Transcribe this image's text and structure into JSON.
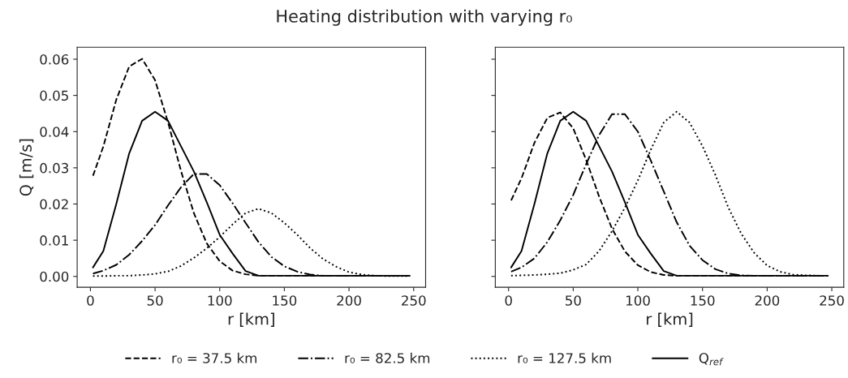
{
  "chart_data": [
    {
      "type": "line",
      "title": "Heating distribution with varying r₀",
      "xlabel": "r [km]",
      "ylabel": "Q [m/s]",
      "x": [
        2,
        10,
        20,
        30,
        40,
        50,
        60,
        70,
        80,
        90,
        100,
        110,
        120,
        130,
        140,
        150,
        160,
        170,
        180,
        190,
        200,
        210,
        220,
        230,
        240,
        247
      ],
      "xlim": [
        -10.25,
        259.25
      ],
      "xticks": [
        0,
        50,
        100,
        150,
        200,
        250
      ],
      "ylim": [
        -0.003,
        0.0633
      ],
      "yticks": [
        {
          "value": 0,
          "label": "0.00"
        },
        {
          "value": 0.01,
          "label": "0.01"
        },
        {
          "value": 0.02,
          "label": "0.02"
        },
        {
          "value": 0.03,
          "label": "0.03"
        },
        {
          "value": 0.04,
          "label": "0.04"
        },
        {
          "value": 0.05,
          "label": "0.05"
        },
        {
          "value": 0.06,
          "label": "0.06"
        }
      ],
      "legend": "bottom",
      "grid": false,
      "series": [
        {
          "name": "r₀ = 37.5 km",
          "color": "#000000",
          "line_style": "dashed",
          "values": [
            0.0278,
            0.0359,
            0.0488,
            0.058,
            0.0601,
            0.0542,
            0.0426,
            0.0292,
            0.0175,
            0.0091,
            0.0042,
            0.0016,
            0.0006,
            0.0002,
            0.0002,
            0.0002,
            0.0002,
            0.0002,
            0.0002,
            0.0002,
            0.0002,
            0.0002,
            0.0002,
            0.0002,
            0.0002,
            0.0002
          ]
        },
        {
          "name": "r₀ = 82.5 km",
          "color": "#000000",
          "line_style": "dashdot",
          "values": [
            0.0008,
            0.0016,
            0.0032,
            0.006,
            0.0098,
            0.0142,
            0.0196,
            0.0246,
            0.0283,
            0.0283,
            0.0252,
            0.0202,
            0.0148,
            0.0095,
            0.0054,
            0.0028,
            0.0013,
            0.0005,
            0.0002,
            0.0002,
            0.0002,
            0.0002,
            0.0002,
            0.0002,
            0.0002,
            0.0002
          ]
        },
        {
          "name": "r₀ = 127.5 km",
          "color": "#000000",
          "line_style": "dotted",
          "values": [
            0.0001,
            0.0001,
            0.0002,
            0.0002,
            0.0004,
            0.0007,
            0.0014,
            0.0029,
            0.0051,
            0.0078,
            0.0109,
            0.0144,
            0.0175,
            0.0187,
            0.0175,
            0.0148,
            0.0115,
            0.0078,
            0.0048,
            0.0027,
            0.0012,
            0.0005,
            0.0002,
            0.0001,
            0.0001,
            0.0001
          ]
        },
        {
          "name": "Q$_{ref}$",
          "color": "#000000",
          "line_style": "solid",
          "values": [
            0.0025,
            0.007,
            0.02,
            0.034,
            0.043,
            0.0455,
            0.043,
            0.036,
            0.029,
            0.0205,
            0.0115,
            0.0063,
            0.0015,
            0.0002,
            0.0002,
            0.0002,
            0.0002,
            0.0002,
            0.0002,
            0.0002,
            0.0002,
            0.0002,
            0.0002,
            0.0002,
            0.0002,
            0.0002
          ]
        }
      ]
    },
    {
      "type": "line",
      "xlabel": "r [km]",
      "x": [
        2,
        10,
        20,
        30,
        40,
        50,
        60,
        70,
        80,
        90,
        100,
        110,
        120,
        130,
        140,
        150,
        160,
        170,
        180,
        190,
        200,
        210,
        220,
        230,
        240,
        247
      ],
      "xlim": [
        -10.25,
        259.25
      ],
      "xticks": [
        0,
        50,
        100,
        150,
        200,
        250
      ],
      "ylim": [
        -0.003,
        0.0633
      ],
      "yticks": [
        {
          "value": 0,
          "label": null
        },
        {
          "value": 0.01,
          "label": null
        },
        {
          "value": 0.02,
          "label": null
        },
        {
          "value": 0.03,
          "label": null
        },
        {
          "value": 0.04,
          "label": null
        },
        {
          "value": 0.05,
          "label": null
        },
        {
          "value": 0.06,
          "label": null
        }
      ],
      "tick_labels": "x",
      "grid": false,
      "series": [
        {
          "color": "#000000",
          "line_style": "dashed",
          "values": [
            0.021,
            0.0271,
            0.0369,
            0.0438,
            0.0453,
            0.0409,
            0.0322,
            0.0221,
            0.0132,
            0.0069,
            0.0031,
            0.0012,
            0.0004,
            0.0002,
            0.0002,
            0.0002,
            0.0002,
            0.0002,
            0.0002,
            0.0002,
            0.0002,
            0.0002,
            0.0002,
            0.0002,
            0.0002,
            0.0002
          ]
        },
        {
          "color": "#000000",
          "line_style": "dashdot",
          "values": [
            0.0013,
            0.0025,
            0.005,
            0.0095,
            0.0155,
            0.0225,
            0.031,
            0.039,
            0.0448,
            0.0448,
            0.04,
            0.032,
            0.0235,
            0.015,
            0.0085,
            0.0045,
            0.002,
            0.0008,
            0.0003,
            0.0002,
            0.0002,
            0.0002,
            0.0002,
            0.0002,
            0.0002,
            0.0002
          ]
        },
        {
          "color": "#000000",
          "line_style": "dotted",
          "values": [
            0.0002,
            0.0003,
            0.0004,
            0.0006,
            0.0009,
            0.0018,
            0.0033,
            0.007,
            0.0125,
            0.019,
            0.0265,
            0.035,
            0.0425,
            0.0455,
            0.0425,
            0.036,
            0.028,
            0.019,
            0.0118,
            0.0065,
            0.003,
            0.0013,
            0.0005,
            0.0003,
            0.0002,
            0.0002
          ]
        },
        {
          "color": "#000000",
          "line_style": "solid",
          "values": [
            0.0025,
            0.007,
            0.02,
            0.034,
            0.043,
            0.0455,
            0.043,
            0.036,
            0.029,
            0.0205,
            0.0115,
            0.0063,
            0.0015,
            0.0002,
            0.0002,
            0.0002,
            0.0002,
            0.0002,
            0.0002,
            0.0002,
            0.0002,
            0.0002,
            0.0002,
            0.0002,
            0.0002,
            0.0002
          ]
        }
      ]
    }
  ]
}
